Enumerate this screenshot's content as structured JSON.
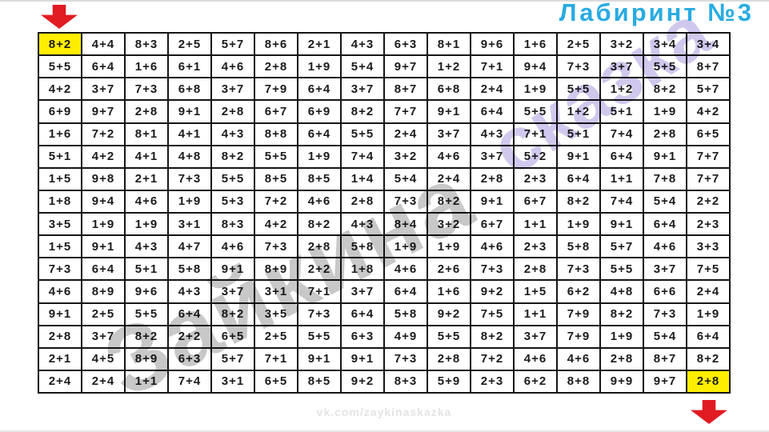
{
  "title": "Лабиринт №3",
  "footer": "vk.com/zaykinaskazka",
  "watermark": {
    "part1": "Зайкина",
    "part2": "сказка"
  },
  "colors": {
    "title_blue": "#29abe2",
    "arrow_red": "#e11b22",
    "highlight_yellow": "#ffee00",
    "cell_text": "#1c1c1c",
    "footer_gray": "#e4e4e4",
    "watermark_gray": "#8c8c8c",
    "watermark_purple": "#ab9ade"
  },
  "start_cell": {
    "row": 0,
    "col": 0,
    "label": "8+2"
  },
  "end_cell": {
    "row": 15,
    "col": 15,
    "label": "2+8"
  },
  "grid": {
    "rows": [
      [
        "8+2",
        "4+4",
        "8+3",
        "2+5",
        "5+7",
        "8+6",
        "2+1",
        "4+3",
        "6+3",
        "8+1",
        "9+6",
        "1+6",
        "2+5",
        "3+2",
        "3+4",
        "3+4"
      ],
      [
        "5+5",
        "6+4",
        "1+6",
        "6+1",
        "4+6",
        "2+8",
        "1+9",
        "5+4",
        "9+7",
        "1+2",
        "7+1",
        "9+4",
        "7+3",
        "3+7",
        "5+5",
        "8+7"
      ],
      [
        "4+2",
        "3+7",
        "7+3",
        "6+8",
        "3+7",
        "7+9",
        "6+4",
        "3+7",
        "8+7",
        "6+8",
        "2+4",
        "1+9",
        "5+5",
        "1+2",
        "8+2",
        "5+7"
      ],
      [
        "6+9",
        "9+7",
        "2+8",
        "9+1",
        "2+8",
        "6+7",
        "6+9",
        "8+2",
        "7+7",
        "9+1",
        "6+4",
        "5+5",
        "1+2",
        "5+1",
        "1+9",
        "4+2"
      ],
      [
        "1+6",
        "7+2",
        "8+1",
        "4+1",
        "4+3",
        "8+8",
        "6+4",
        "5+5",
        "2+4",
        "3+7",
        "4+3",
        "7+1",
        "5+1",
        "7+4",
        "2+8",
        "6+5"
      ],
      [
        "5+1",
        "4+2",
        "4+1",
        "4+8",
        "8+2",
        "5+5",
        "1+9",
        "7+4",
        "3+2",
        "4+6",
        "3+7",
        "5+2",
        "9+1",
        "6+4",
        "9+1",
        "7+7"
      ],
      [
        "1+5",
        "9+8",
        "2+1",
        "7+3",
        "5+5",
        "8+5",
        "8+5",
        "1+4",
        "5+4",
        "2+4",
        "2+8",
        "2+3",
        "6+4",
        "1+1",
        "7+8",
        "7+7"
      ],
      [
        "1+8",
        "9+4",
        "4+6",
        "1+9",
        "5+3",
        "7+2",
        "4+6",
        "2+8",
        "7+3",
        "8+2",
        "9+1",
        "6+7",
        "8+2",
        "7+4",
        "5+4",
        "2+2"
      ],
      [
        "3+5",
        "1+9",
        "1+9",
        "3+1",
        "8+3",
        "4+2",
        "8+2",
        "4+3",
        "8+4",
        "3+2",
        "6+7",
        "1+1",
        "1+9",
        "9+1",
        "6+4",
        "2+3"
      ],
      [
        "1+5",
        "9+1",
        "4+3",
        "4+7",
        "4+6",
        "7+3",
        "2+8",
        "5+8",
        "1+9",
        "1+9",
        "4+6",
        "2+3",
        "5+8",
        "5+7",
        "4+6",
        "3+3"
      ],
      [
        "7+3",
        "6+4",
        "5+1",
        "5+8",
        "9+1",
        "8+9",
        "2+2",
        "1+8",
        "4+6",
        "2+6",
        "7+3",
        "2+8",
        "7+3",
        "5+5",
        "3+7",
        "7+5"
      ],
      [
        "4+6",
        "8+9",
        "9+6",
        "4+3",
        "3+7",
        "3+1",
        "7+1",
        "3+7",
        "6+4",
        "1+6",
        "9+2",
        "1+5",
        "6+2",
        "4+8",
        "6+6",
        "2+4"
      ],
      [
        "9+1",
        "2+5",
        "5+5",
        "6+4",
        "8+2",
        "3+5",
        "7+3",
        "6+4",
        "5+8",
        "9+2",
        "7+5",
        "1+1",
        "7+9",
        "8+2",
        "7+3",
        "1+9"
      ],
      [
        "2+8",
        "3+7",
        "8+2",
        "2+2",
        "6+5",
        "2+5",
        "5+5",
        "6+3",
        "4+9",
        "5+5",
        "8+2",
        "3+7",
        "7+9",
        "1+9",
        "5+4",
        "6+4"
      ],
      [
        "2+1",
        "4+5",
        "8+9",
        "6+3",
        "5+7",
        "7+1",
        "9+1",
        "9+1",
        "7+3",
        "2+8",
        "7+2",
        "4+6",
        "4+6",
        "2+8",
        "8+7",
        "8+2"
      ],
      [
        "2+4",
        "2+4",
        "1+1",
        "7+4",
        "3+1",
        "6+5",
        "8+5",
        "9+2",
        "8+3",
        "5+9",
        "2+3",
        "6+2",
        "8+8",
        "9+9",
        "9+7",
        "2+8"
      ]
    ]
  }
}
